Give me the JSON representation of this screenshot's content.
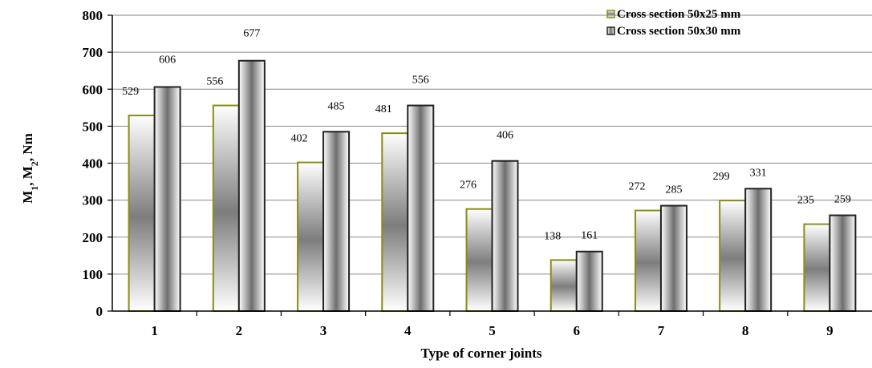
{
  "chart_data": {
    "type": "bar",
    "categories": [
      "1",
      "2",
      "3",
      "4",
      "5",
      "6",
      "7",
      "8",
      "9"
    ],
    "series": [
      {
        "name": "Cross section 50x25 mm",
        "values": [
          529,
          556,
          402,
          481,
          276,
          138,
          272,
          299,
          235
        ],
        "color": "#8c8c1a"
      },
      {
        "name": "Cross section 50x30 mm",
        "values": [
          606,
          677,
          485,
          556,
          406,
          161,
          285,
          331,
          259
        ],
        "color": "#222222"
      }
    ],
    "xlabel": "Type of corner joints",
    "ylabel": {
      "base": "M",
      "sub1": "1",
      "mid": ", M",
      "sub2": "2",
      "tail": ", Nm"
    },
    "ylim": [
      0,
      800
    ],
    "yticks": [
      0,
      100,
      200,
      300,
      400,
      500,
      600,
      700,
      800
    ],
    "grid": true,
    "legend": "top-right"
  }
}
